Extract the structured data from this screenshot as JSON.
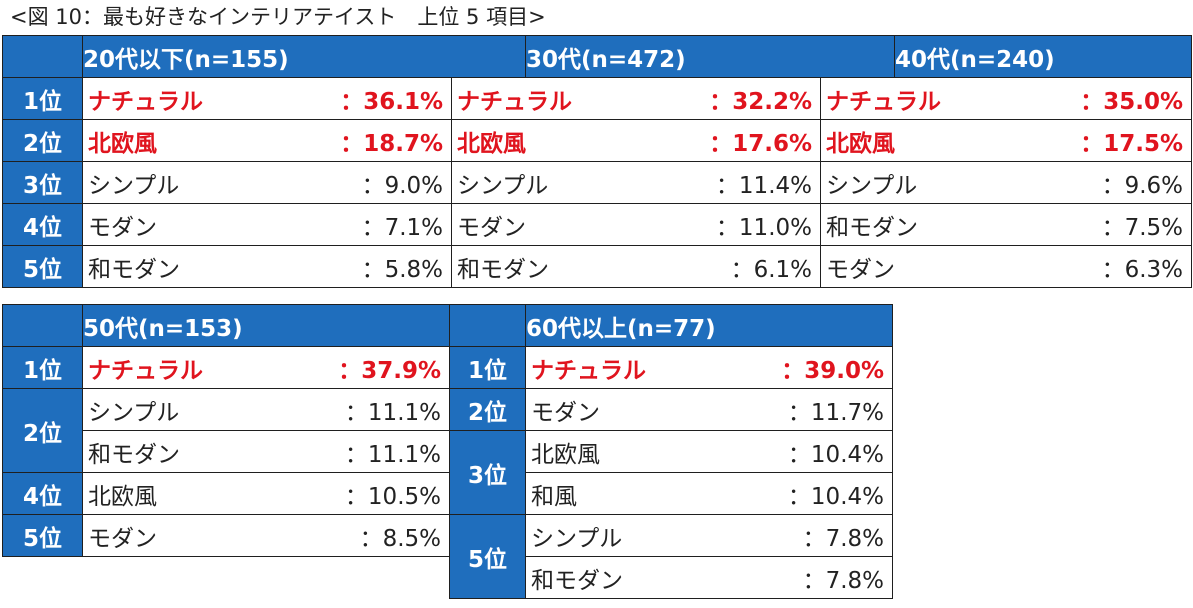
{
  "caption": "<図 10：最も好きなインテリアテイスト　上位 5 項目>",
  "colors": {
    "header_bg": "#1f6ebd",
    "header_text": "#ffffff",
    "highlight_text": "#e0141e",
    "border": "#1f1f1f"
  },
  "rank_labels": {
    "r1": "1位",
    "r2": "2位",
    "r3": "3位",
    "r4": "4位",
    "r5": "5位"
  },
  "groups": {
    "g20": {
      "header": "20代以下(n=155)",
      "rows": [
        {
          "name": "ナチュラル",
          "pct": "：36.1%"
        },
        {
          "name": "北欧風",
          "pct": "：18.7%"
        },
        {
          "name": "シンプル",
          "pct": "：9.0%"
        },
        {
          "name": "モダン",
          "pct": "：7.1%"
        },
        {
          "name": "和モダン",
          "pct": "：5.8%"
        }
      ]
    },
    "g30": {
      "header": "30代(n=472)",
      "rows": [
        {
          "name": "ナチュラル",
          "pct": "：32.2%"
        },
        {
          "name": "北欧風",
          "pct": "：17.6%"
        },
        {
          "name": "シンプル",
          "pct": "：11.4%"
        },
        {
          "name": "モダン",
          "pct": "：11.0%"
        },
        {
          "name": "和モダン",
          "pct": "：6.1%"
        }
      ]
    },
    "g40": {
      "header": "40代(n=240)",
      "rows": [
        {
          "name": "ナチュラル",
          "pct": "：35.0%"
        },
        {
          "name": "北欧風",
          "pct": "：17.5%"
        },
        {
          "name": "シンプル",
          "pct": "：9.6%"
        },
        {
          "name": "和モダン",
          "pct": "：7.5%"
        },
        {
          "name": "モダン",
          "pct": "：6.3%"
        }
      ]
    },
    "g50": {
      "header": "50代(n=153)",
      "rows": [
        {
          "name": "ナチュラル",
          "pct": "：37.9%"
        },
        {
          "name": "シンプル",
          "pct": "：11.1%"
        },
        {
          "name": "和モダン",
          "pct": "：11.1%"
        },
        {
          "name": "北欧風",
          "pct": "：10.5%"
        },
        {
          "name": "モダン",
          "pct": "：8.5%"
        }
      ]
    },
    "g60": {
      "header": "60代以上(n=77)",
      "rows": [
        {
          "name": "ナチュラル",
          "pct": "：39.0%"
        },
        {
          "name": "モダン",
          "pct": "：11.7%"
        },
        {
          "name": "北欧風",
          "pct": "：10.4%"
        },
        {
          "name": "和風",
          "pct": "：10.4%"
        },
        {
          "name": "シンプル",
          "pct": "：7.8%"
        },
        {
          "name": "和モダン",
          "pct": "：7.8%"
        }
      ]
    }
  }
}
